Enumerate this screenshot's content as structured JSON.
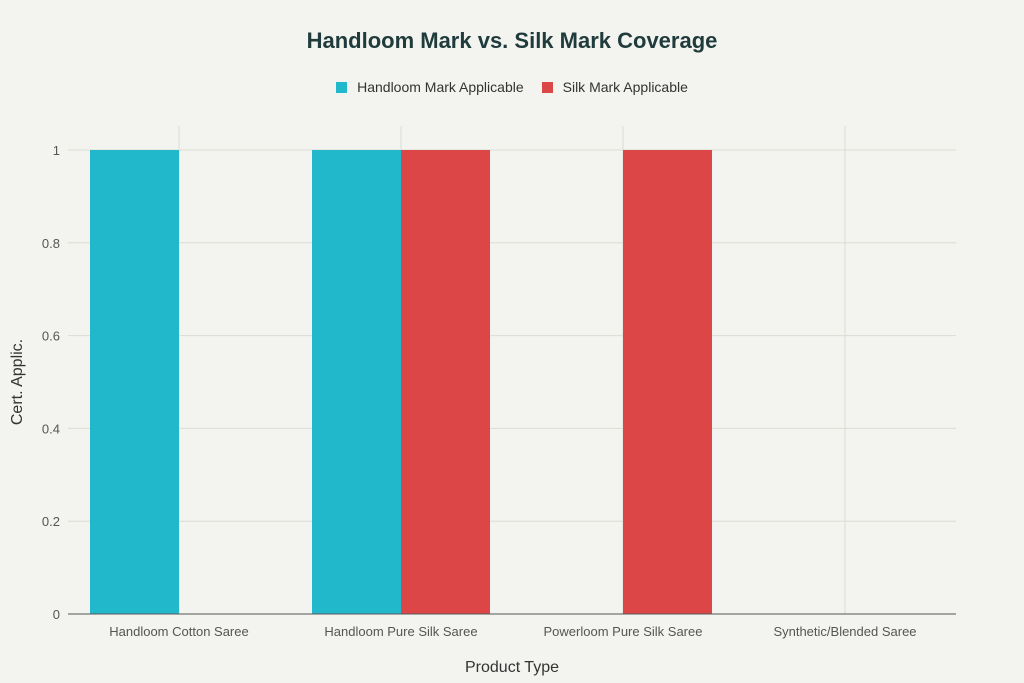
{
  "chart_data": {
    "type": "bar",
    "title": "Handloom Mark vs. Silk Mark Coverage",
    "xlabel": "Product Type",
    "ylabel": "Cert. Applic.",
    "categories": [
      "Handloom Cotton Saree",
      "Handloom Pure Silk Saree",
      "Powerloom Pure Silk Saree",
      "Synthetic/Blended Saree"
    ],
    "series": [
      {
        "name": "Handloom Mark Applicable",
        "values": [
          1,
          1,
          0,
          0
        ],
        "color": "#21b8cc"
      },
      {
        "name": "Silk Mark Applicable",
        "values": [
          0,
          1,
          1,
          0
        ],
        "color": "#dc4646"
      }
    ],
    "ylim": [
      0,
      1
    ],
    "yticks": [
      "0",
      "0.2",
      "0.4",
      "0.6",
      "0.8",
      "1"
    ],
    "grid": true,
    "legend": "top-center"
  }
}
